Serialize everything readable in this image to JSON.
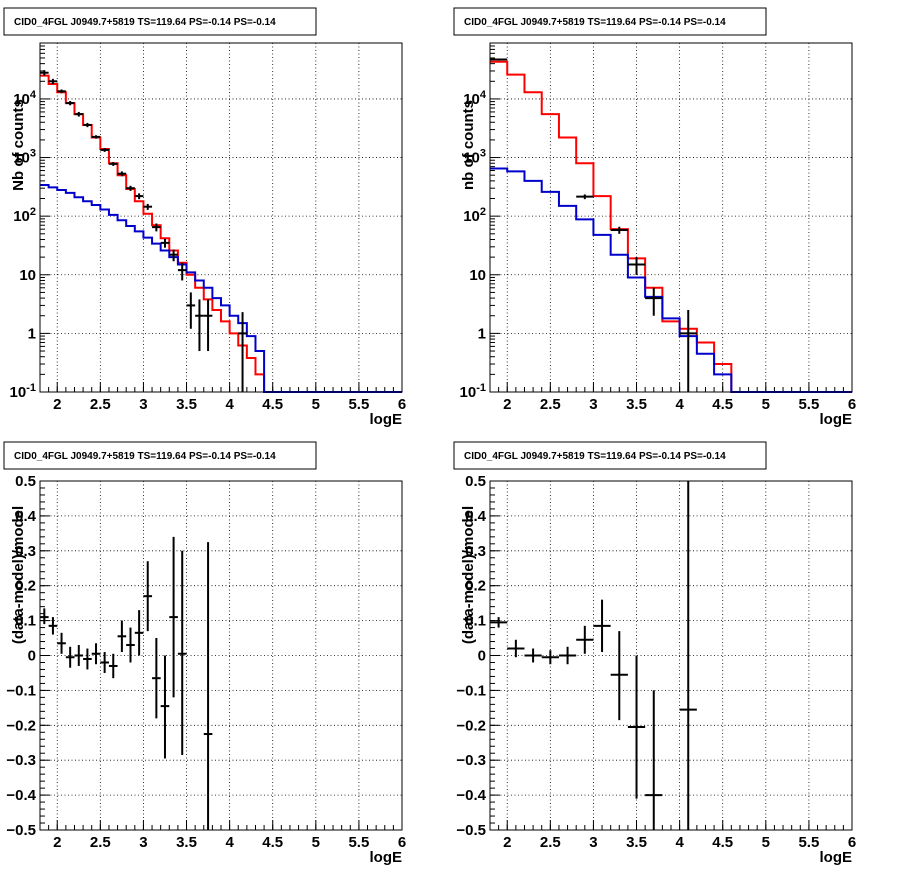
{
  "colors": {
    "red": "#ff0000",
    "blue": "#0000cc",
    "data": "#000000"
  },
  "chart_data": [
    {
      "type": "line",
      "title": "CID0_4FGL J0949.7+5819 TS=119.64 PS=-0.14 PS=-0.14",
      "xlabel": "logE",
      "ylabel": "Nb of counts",
      "log_y": true,
      "xlim": [
        1.8,
        6
      ],
      "ylim": [
        0.1,
        90000
      ],
      "xticks": [
        2,
        2.5,
        3,
        3.5,
        4,
        4.5,
        5,
        5.5,
        6
      ],
      "xtick_labels": [
        "2",
        "2.5",
        "3",
        "3.5",
        "4",
        "4.5",
        "5",
        "5.5",
        "6"
      ],
      "yticks": [
        0.1,
        1,
        10,
        100,
        1000,
        10000
      ],
      "ytick_labels": [
        "10^-1",
        "1",
        "10",
        "10^2",
        "10^3",
        "10^4"
      ],
      "bin_edges": [
        1.8,
        1.9,
        2.0,
        2.1,
        2.2,
        2.3,
        2.4,
        2.5,
        2.6,
        2.7,
        2.8,
        2.9,
        3.0,
        3.1,
        3.2,
        3.3,
        3.4,
        3.5,
        3.6,
        3.7,
        3.8,
        3.9,
        4.0,
        4.1,
        4.2,
        4.3,
        4.4,
        4.5,
        4.6,
        4.7,
        4.8,
        4.9,
        5.0,
        5.1,
        5.2,
        5.3,
        5.4,
        5.5,
        5.6,
        5.7,
        5.8,
        5.9,
        6.0
      ],
      "series": [
        {
          "color": "red",
          "values": [
            25000,
            18000,
            13000,
            8500,
            5500,
            3600,
            2200,
            1400,
            800,
            500,
            290,
            180,
            110,
            70,
            42,
            26,
            16,
            10,
            6,
            3.8,
            2.5,
            1.6,
            1.0,
            0.62,
            0.38,
            0.2,
            0.1,
            0.1,
            0.1,
            0.1,
            0.1,
            0.1,
            0.1,
            0.1,
            0.1,
            0.1,
            0.1,
            0.1,
            0.1,
            0.1,
            0.1,
            0.1
          ]
        },
        {
          "color": "blue",
          "values": [
            340,
            310,
            280,
            250,
            210,
            180,
            155,
            130,
            105,
            85,
            68,
            55,
            43,
            34,
            26,
            20,
            15,
            11,
            8,
            6,
            4,
            3,
            2,
            1.5,
            0.9,
            0.5,
            0.1,
            0.1,
            0.1,
            0.1,
            0.1,
            0.1,
            0.1,
            0.1,
            0.1,
            0.1,
            0.1,
            0.1,
            0.1,
            0.1,
            0.1,
            0.1
          ]
        }
      ],
      "points": [
        {
          "x": 1.85,
          "y": 28000,
          "lo": 25000,
          "hi": 31000
        },
        {
          "x": 1.95,
          "y": 20000,
          "lo": 18000,
          "hi": 22000
        },
        {
          "x": 2.05,
          "y": 13500,
          "lo": 12500,
          "hi": 14500
        },
        {
          "x": 2.15,
          "y": 8500,
          "lo": 7800,
          "hi": 9200
        },
        {
          "x": 2.25,
          "y": 5500,
          "lo": 5000,
          "hi": 6000
        },
        {
          "x": 2.35,
          "y": 3600,
          "lo": 3300,
          "hi": 3900
        },
        {
          "x": 2.45,
          "y": 2250,
          "lo": 2100,
          "hi": 2400
        },
        {
          "x": 2.55,
          "y": 1350,
          "lo": 1250,
          "hi": 1450
        },
        {
          "x": 2.65,
          "y": 780,
          "lo": 720,
          "hi": 840
        },
        {
          "x": 2.75,
          "y": 530,
          "lo": 480,
          "hi": 580
        },
        {
          "x": 2.85,
          "y": 300,
          "lo": 270,
          "hi": 330
        },
        {
          "x": 2.95,
          "y": 220,
          "lo": 195,
          "hi": 245
        },
        {
          "x": 3.05,
          "y": 145,
          "lo": 128,
          "hi": 162
        },
        {
          "x": 3.15,
          "y": 65,
          "lo": 55,
          "hi": 75
        },
        {
          "x": 3.25,
          "y": 35,
          "lo": 29,
          "hi": 41
        },
        {
          "x": 3.35,
          "y": 22,
          "lo": 17,
          "hi": 27
        },
        {
          "x": 3.45,
          "y": 12,
          "lo": 8,
          "hi": 16
        },
        {
          "x": 3.55,
          "y": 3,
          "lo": 1.2,
          "hi": 5
        },
        {
          "x": 3.65,
          "y": 2,
          "lo": 0.5,
          "hi": 3.8
        },
        {
          "x": 3.75,
          "y": 2,
          "lo": 0.5,
          "hi": 3.8
        },
        {
          "x": 4.15,
          "y": 1,
          "lo": 0.1,
          "hi": 2.3
        }
      ]
    },
    {
      "type": "line",
      "title": "CID0_4FGL J0949.7+5819 TS=119.64 PS=-0.14 PS=-0.14",
      "xlabel": "logE",
      "ylabel": "nb of counts",
      "log_y": true,
      "xlim": [
        1.8,
        6
      ],
      "ylim": [
        0.1,
        90000
      ],
      "xticks": [
        2,
        2.5,
        3,
        3.5,
        4,
        4.5,
        5,
        5.5,
        6
      ],
      "xtick_labels": [
        "2",
        "2.5",
        "3",
        "3.5",
        "4",
        "4.5",
        "5",
        "5.5",
        "6"
      ],
      "yticks": [
        0.1,
        1,
        10,
        100,
        1000,
        10000
      ],
      "ytick_labels": [
        "10^-1",
        "1",
        "10",
        "10^2",
        "10^3",
        "10^4"
      ],
      "bin_edges": [
        1.8,
        2.0,
        2.2,
        2.4,
        2.6,
        2.8,
        3.0,
        3.2,
        3.4,
        3.6,
        3.8,
        4.0,
        4.2,
        4.4,
        4.6,
        4.8,
        5.0,
        5.2,
        5.4,
        5.6,
        5.8,
        6.0
      ],
      "series": [
        {
          "color": "red",
          "values": [
            43000,
            26000,
            13000,
            5500,
            2200,
            800,
            220,
            60,
            19,
            6,
            1.6,
            1.2,
            0.7,
            0.3,
            0.1,
            0.1,
            0.1,
            0.1,
            0.1,
            0.1,
            0.1
          ]
        },
        {
          "color": "blue",
          "values": [
            650,
            580,
            400,
            260,
            150,
            88,
            48,
            22,
            9,
            4.2,
            1.8,
            0.9,
            0.45,
            0.2,
            0.1,
            0.1,
            0.1,
            0.1,
            0.1,
            0.1,
            0.1
          ]
        }
      ],
      "points": [
        {
          "x": 1.9,
          "y": 47000,
          "lo": 45000,
          "hi": 49000
        },
        {
          "x": 2.9,
          "y": 215,
          "lo": 195,
          "hi": 235
        },
        {
          "x": 3.3,
          "y": 58,
          "lo": 50,
          "hi": 66
        },
        {
          "x": 3.5,
          "y": 15,
          "lo": 10,
          "hi": 20
        },
        {
          "x": 3.7,
          "y": 4,
          "lo": 2,
          "hi": 6
        },
        {
          "x": 4.1,
          "y": 1,
          "lo": 0.1,
          "hi": 2.5
        }
      ]
    },
    {
      "type": "scatter",
      "title": "CID0_4FGL J0949.7+5819 TS=119.64 PS=-0.14 PS=-0.14",
      "xlabel": "logE",
      "ylabel": "(data-model)/model",
      "log_y": false,
      "xlim": [
        1.8,
        6
      ],
      "ylim": [
        -0.5,
        0.5
      ],
      "xticks": [
        2,
        2.5,
        3,
        3.5,
        4,
        4.5,
        5,
        5.5,
        6
      ],
      "xtick_labels": [
        "2",
        "2.5",
        "3",
        "3.5",
        "4",
        "4.5",
        "5",
        "5.5",
        "6"
      ],
      "yticks": [
        -0.5,
        -0.4,
        -0.3,
        -0.2,
        -0.1,
        0,
        0.1,
        0.2,
        0.3,
        0.4,
        0.5
      ],
      "ytick_labels": [
        "−0.5",
        "−0.4",
        "−0.3",
        "−0.2",
        "−0.1",
        "0",
        "0.1",
        "0.2",
        "0.3",
        "0.4",
        "0.5"
      ],
      "bin_width": 0.1,
      "points": [
        {
          "x": 1.85,
          "y": 0.11,
          "lo": 0.09,
          "hi": 0.135
        },
        {
          "x": 1.95,
          "y": 0.085,
          "lo": 0.06,
          "hi": 0.11
        },
        {
          "x": 2.05,
          "y": 0.035,
          "lo": 0.005,
          "hi": 0.065
        },
        {
          "x": 2.15,
          "y": -0.005,
          "lo": -0.035,
          "hi": 0.025
        },
        {
          "x": 2.25,
          "y": 0.0,
          "lo": -0.03,
          "hi": 0.03
        },
        {
          "x": 2.35,
          "y": -0.01,
          "lo": -0.04,
          "hi": 0.02
        },
        {
          "x": 2.45,
          "y": 0.005,
          "lo": -0.025,
          "hi": 0.035
        },
        {
          "x": 2.55,
          "y": -0.02,
          "lo": -0.05,
          "hi": 0.01
        },
        {
          "x": 2.65,
          "y": -0.03,
          "lo": -0.065,
          "hi": 0.005
        },
        {
          "x": 2.75,
          "y": 0.055,
          "lo": 0.01,
          "hi": 0.1
        },
        {
          "x": 2.85,
          "y": 0.03,
          "lo": -0.02,
          "hi": 0.08
        },
        {
          "x": 2.95,
          "y": 0.065,
          "lo": 0.0,
          "hi": 0.13
        },
        {
          "x": 3.05,
          "y": 0.17,
          "lo": 0.07,
          "hi": 0.27
        },
        {
          "x": 3.15,
          "y": -0.065,
          "lo": -0.18,
          "hi": 0.05
        },
        {
          "x": 3.25,
          "y": -0.145,
          "lo": -0.295,
          "hi": 0.0
        },
        {
          "x": 3.35,
          "y": 0.11,
          "lo": -0.12,
          "hi": 0.34
        },
        {
          "x": 3.45,
          "y": 0.005,
          "lo": -0.285,
          "hi": 0.3
        },
        {
          "x": 3.75,
          "y": -0.225,
          "lo": -0.5,
          "hi": 0.325
        }
      ]
    },
    {
      "type": "scatter",
      "title": "CID0_4FGL J0949.7+5819 TS=119.64 PS=-0.14 PS=-0.14",
      "xlabel": "logE",
      "ylabel": "(data-model)/model",
      "log_y": false,
      "xlim": [
        1.8,
        6
      ],
      "ylim": [
        -0.5,
        0.5
      ],
      "xticks": [
        2,
        2.5,
        3,
        3.5,
        4,
        4.5,
        5,
        5.5,
        6
      ],
      "xtick_labels": [
        "2",
        "2.5",
        "3",
        "3.5",
        "4",
        "4.5",
        "5",
        "5.5",
        "6"
      ],
      "yticks": [
        -0.5,
        -0.4,
        -0.3,
        -0.2,
        -0.1,
        0,
        0.1,
        0.2,
        0.3,
        0.4,
        0.5
      ],
      "ytick_labels": [
        "−0.5",
        "−0.4",
        "−0.3",
        "−0.2",
        "−0.1",
        "0",
        "0.1",
        "0.2",
        "0.3",
        "0.4",
        "0.5"
      ],
      "bin_width": 0.2,
      "points": [
        {
          "x": 1.9,
          "y": 0.095,
          "lo": 0.08,
          "hi": 0.11
        },
        {
          "x": 2.1,
          "y": 0.02,
          "lo": -0.005,
          "hi": 0.045
        },
        {
          "x": 2.3,
          "y": 0.0,
          "lo": -0.02,
          "hi": 0.02
        },
        {
          "x": 2.5,
          "y": -0.005,
          "lo": -0.025,
          "hi": 0.015
        },
        {
          "x": 2.7,
          "y": 0.0,
          "lo": -0.025,
          "hi": 0.025
        },
        {
          "x": 2.9,
          "y": 0.045,
          "lo": 0.005,
          "hi": 0.085
        },
        {
          "x": 3.1,
          "y": 0.085,
          "lo": 0.01,
          "hi": 0.16
        },
        {
          "x": 3.3,
          "y": -0.055,
          "lo": -0.185,
          "hi": 0.07
        },
        {
          "x": 3.5,
          "y": -0.205,
          "lo": -0.41,
          "hi": 0.0
        },
        {
          "x": 3.7,
          "y": -0.4,
          "lo": -0.5,
          "hi": -0.1
        },
        {
          "x": 4.1,
          "y": -0.155,
          "lo": -0.5,
          "hi": 0.5
        }
      ]
    }
  ]
}
